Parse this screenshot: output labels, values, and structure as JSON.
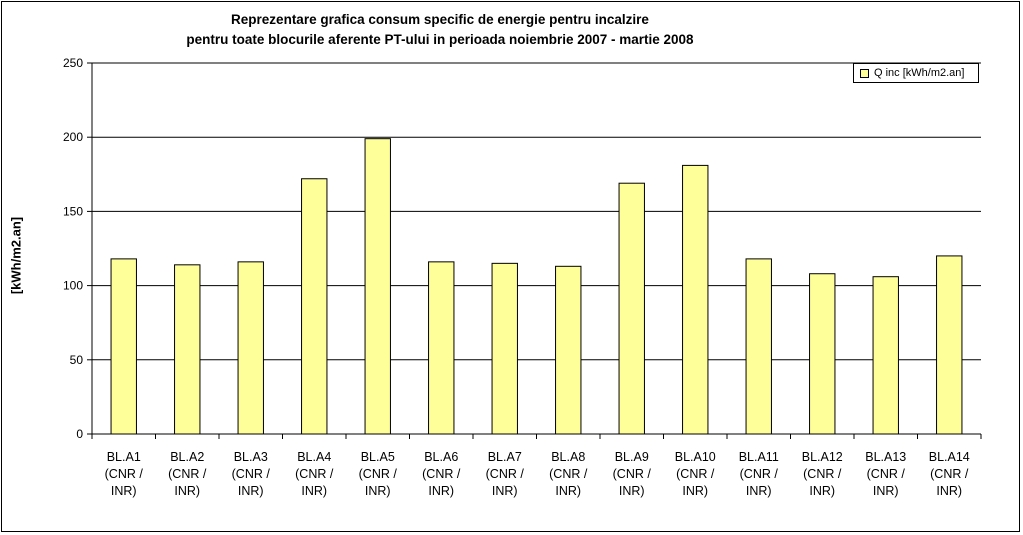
{
  "chart_data": {
    "type": "bar",
    "title": [
      "Reprezentare grafica consum specific de energie pentru incalzire",
      "pentru toate blocurile aferente PT-ului in perioada noiembrie 2007 - martie 2008"
    ],
    "ylabel": "[kWh/m2.an]",
    "ylim": [
      0,
      250
    ],
    "yticks": [
      "0",
      "50",
      "100",
      "150",
      "200",
      "250"
    ],
    "grid": true,
    "legend_placement": "top-right",
    "categories": [
      [
        "BL.A1",
        "(CNR /",
        "INR)"
      ],
      [
        "BL.A2",
        "(CNR /",
        "INR)"
      ],
      [
        "BL.A3",
        "(CNR /",
        "INR)"
      ],
      [
        "BL.A4",
        "(CNR /",
        "INR)"
      ],
      [
        "BL.A5",
        "(CNR /",
        "INR)"
      ],
      [
        "BL.A6",
        "(CNR /",
        "INR)"
      ],
      [
        "BL.A7",
        "(CNR /",
        "INR)"
      ],
      [
        "BL.A8",
        "(CNR /",
        "INR)"
      ],
      [
        "BL.A9",
        "(CNR /",
        "INR)"
      ],
      [
        "BL.A10",
        "(CNR /",
        "INR)"
      ],
      [
        "BL.A11",
        "(CNR /",
        "INR)"
      ],
      [
        "BL.A12",
        "(CNR /",
        "INR)"
      ],
      [
        "BL.A13",
        "(CNR /",
        "INR)"
      ],
      [
        "BL.A14",
        "(CNR /",
        "INR)"
      ]
    ],
    "series": [
      {
        "name": "Q inc [kWh/m2.an]",
        "color": "#ffff99",
        "values": [
          118,
          114,
          116,
          172,
          199,
          116,
          115,
          113,
          169,
          181,
          118,
          108,
          106,
          120
        ]
      }
    ]
  }
}
